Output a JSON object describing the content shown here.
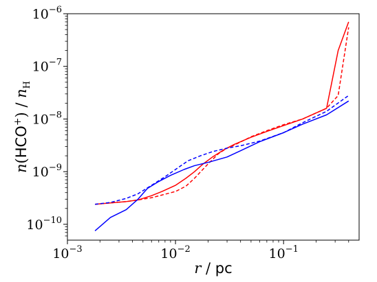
{
  "chart_data": {
    "type": "line",
    "title": "",
    "xlabel": "r / pc",
    "ylabel": "n(HCO+) / nH",
    "xscale": "log",
    "yscale": "log",
    "xlim": [
      0.001,
      0.5
    ],
    "ylim": [
      5e-11,
      1e-06
    ],
    "grid": false,
    "legend": "none",
    "xticks": [
      {
        "value": 0.001,
        "base": "10",
        "exp": "−3"
      },
      {
        "value": 0.01,
        "base": "10",
        "exp": "−2"
      },
      {
        "value": 0.1,
        "base": "10",
        "exp": "−1"
      }
    ],
    "yticks": [
      {
        "value": 1e-10,
        "base": "10",
        "exp": "−10"
      },
      {
        "value": 1e-09,
        "base": "10",
        "exp": "−9"
      },
      {
        "value": 1e-08,
        "base": "10",
        "exp": "−8"
      },
      {
        "value": 1e-07,
        "base": "10",
        "exp": "−7"
      },
      {
        "value": 1e-06,
        "base": "10",
        "exp": "−6"
      }
    ],
    "series": [
      {
        "color": "#ff0000",
        "linestyle": "solid",
        "x": [
          0.0018,
          0.0025,
          0.0035,
          0.0045,
          0.006,
          0.0075,
          0.01,
          0.0125,
          0.015,
          0.018,
          0.022,
          0.028,
          0.035,
          0.05,
          0.07,
          0.1,
          0.15,
          0.25,
          0.32,
          0.4
        ],
        "y": [
          2.4e-10,
          2.55e-10,
          2.7e-10,
          2.9e-10,
          3.5e-10,
          4.2e-10,
          5.5e-10,
          7.5e-10,
          1e-09,
          1.4e-09,
          1.9e-09,
          2.6e-09,
          3.3e-09,
          4.5e-09,
          5.8e-09,
          7.5e-09,
          1e-08,
          1.6e-08,
          2e-07,
          7e-07
        ]
      },
      {
        "color": "#ff0000",
        "linestyle": "dashed",
        "x": [
          0.0018,
          0.0025,
          0.0035,
          0.0045,
          0.006,
          0.0075,
          0.01,
          0.0125,
          0.015,
          0.02,
          0.025,
          0.03,
          0.035,
          0.05,
          0.07,
          0.1,
          0.15,
          0.25,
          0.32,
          0.4
        ],
        "y": [
          2.4e-10,
          2.55e-10,
          2.7e-10,
          2.9e-10,
          3.2e-10,
          3.6e-10,
          4.2e-10,
          5.3e-10,
          7.5e-10,
          1.4e-09,
          2.2e-09,
          2.8e-09,
          3.2e-09,
          4.6e-09,
          6e-09,
          7.8e-09,
          1e-08,
          1.6e-08,
          2.8e-08,
          5.5e-07
        ]
      },
      {
        "color": "#0000ff",
        "linestyle": "solid",
        "x": [
          0.0018,
          0.0025,
          0.0035,
          0.0045,
          0.0055,
          0.007,
          0.009,
          0.012,
          0.015,
          0.02,
          0.03,
          0.04,
          0.06,
          0.1,
          0.15,
          0.25,
          0.4
        ],
        "y": [
          7.5e-11,
          1.35e-10,
          1.9e-10,
          3e-10,
          4.8e-10,
          6.5e-10,
          8.5e-10,
          1.1e-09,
          1.3e-09,
          1.5e-09,
          1.9e-09,
          2.5e-09,
          3.7e-09,
          5.5e-09,
          8e-09,
          1.2e-08,
          2.2e-08
        ]
      },
      {
        "color": "#0000ff",
        "linestyle": "dashed",
        "x": [
          0.0018,
          0.0025,
          0.0035,
          0.0045,
          0.006,
          0.008,
          0.01,
          0.013,
          0.017,
          0.022,
          0.03,
          0.04,
          0.06,
          0.1,
          0.15,
          0.25,
          0.4
        ],
        "y": [
          2.4e-10,
          2.6e-10,
          3.1e-10,
          3.8e-10,
          5.5e-10,
          8e-10,
          1.1e-09,
          1.6e-09,
          2e-09,
          2.4e-09,
          2.8e-09,
          3.1e-09,
          3.8e-09,
          5.5e-09,
          8.5e-09,
          1.4e-08,
          2.8e-08
        ]
      }
    ]
  }
}
